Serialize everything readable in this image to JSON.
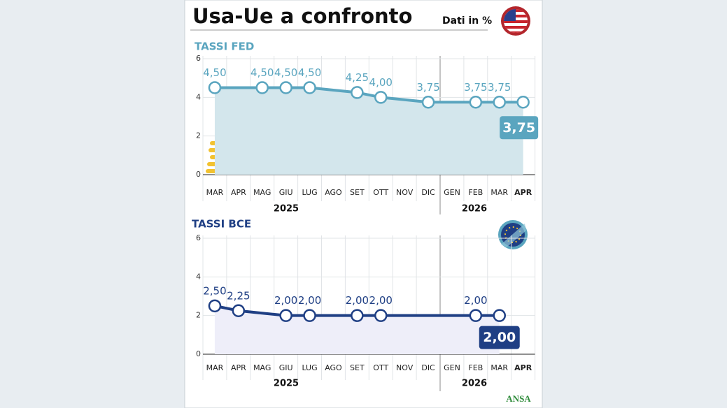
{
  "title": "Usa-Ue a confronto",
  "subtitle": "Dati in %",
  "source": "ANSA",
  "chart_data": [
    {
      "type": "line",
      "title": "TASSI FED",
      "color": "#5aa5bf",
      "fill": "#d3e6ec",
      "categories": [
        "MAR",
        "APR",
        "MAG",
        "GIU",
        "LUG",
        "AGO",
        "SET",
        "OTT",
        "NOV",
        "DIC",
        "GEN",
        "FEB",
        "MAR",
        "APR"
      ],
      "values": [
        4.5,
        4.5,
        4.5,
        4.5,
        4.5,
        4.375,
        4.25,
        4.0,
        3.875,
        3.75,
        3.75,
        3.75,
        3.75,
        3.75
      ],
      "value_labels": [
        "4,50",
        null,
        "4,50",
        "4,50",
        "4,50",
        null,
        "4,25",
        "4,00",
        null,
        "3,75",
        null,
        "3,75",
        "3,75",
        "3,75"
      ],
      "year_labels": [
        "2025",
        "2026"
      ],
      "ylim": [
        0,
        6
      ],
      "yticks": [
        0,
        2,
        4,
        6
      ]
    },
    {
      "type": "line",
      "title": "TASSI BCE",
      "color": "#1f3f84",
      "fill": "#eeeef9",
      "categories": [
        "MAR",
        "APR",
        "MAG",
        "GIU",
        "LUG",
        "AGO",
        "SET",
        "OTT",
        "NOV",
        "DIC",
        "GEN",
        "FEB",
        "MAR",
        "APR"
      ],
      "values": [
        2.5,
        2.25,
        2.125,
        2.0,
        2.0,
        2.0,
        2.0,
        2.0,
        2.0,
        2.0,
        2.0,
        2.0,
        2.0,
        null
      ],
      "value_labels": [
        "2,50",
        "2,25",
        null,
        "2,00",
        "2,00",
        null,
        "2,00",
        "2,00",
        null,
        null,
        null,
        "2,00",
        "2,00",
        null
      ],
      "year_labels": [
        "2025",
        "2026"
      ],
      "ylim": [
        0,
        6
      ],
      "yticks": [
        0,
        2,
        4,
        6
      ]
    }
  ]
}
